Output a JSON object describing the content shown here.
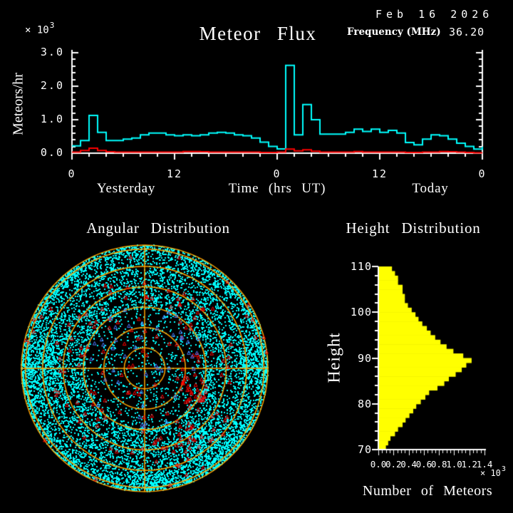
{
  "header": {
    "title": "Meteor Flux",
    "date": "Feb 16 2026",
    "frequency_label": "Frequency (MHz)",
    "frequency_value": "36.20"
  },
  "colors": {
    "background": "#000000",
    "foreground": "#FFFFFF",
    "flux_line": "#00FFFF",
    "secondary_line": "#FF0000",
    "polar_grid": "#FFA500",
    "histogram_bar": "#FFFF00",
    "red_marker": "#FF0000",
    "blue_marker": "#4D79FF"
  },
  "chart_data": [
    {
      "id": "flux",
      "type": "line",
      "subtype": "step",
      "title": "Meteor Flux",
      "ylabel": "Meteors/hr",
      "y_scale_label": "× 10",
      "y_scale_exponent": "3",
      "ylim": [
        0.0,
        3.0
      ],
      "ytick_labels": [
        "0.0",
        "1.0",
        "2.0",
        "3.0"
      ],
      "xlabel": "Time (hrs UT)",
      "x_hours_span": 48,
      "xtick_hours": [
        0,
        12,
        24,
        36,
        48
      ],
      "xtick_labels": [
        "0",
        "12",
        "0",
        "12",
        "0"
      ],
      "x_annotations": [
        "Yesterday",
        "Time (hrs UT)",
        "Today"
      ],
      "grid": false,
      "series": [
        {
          "name": "meteor-rate",
          "color": "#00FFFF",
          "values": [
            0.22,
            0.38,
            1.13,
            0.62,
            0.38,
            0.38,
            0.42,
            0.45,
            0.55,
            0.6,
            0.6,
            0.55,
            0.52,
            0.55,
            0.52,
            0.55,
            0.6,
            0.62,
            0.6,
            0.55,
            0.52,
            0.45,
            0.33,
            0.2,
            0.13,
            2.62,
            0.55,
            1.45,
            1.0,
            0.57,
            0.57,
            0.57,
            0.62,
            0.72,
            0.65,
            0.72,
            0.62,
            0.68,
            0.6,
            0.32,
            0.25,
            0.42,
            0.55,
            0.52,
            0.42,
            0.3,
            0.2,
            0.12
          ],
          "end_value": 0.19
        },
        {
          "name": "secondary-rate",
          "color": "#FF0000",
          "values": [
            0.03,
            0.08,
            0.15,
            0.08,
            0.04,
            0.03,
            0.03,
            0.03,
            0.03,
            0.03,
            0.03,
            0.03,
            0.03,
            0.05,
            0.05,
            0.04,
            0.03,
            0.03,
            0.03,
            0.03,
            0.03,
            0.03,
            0.02,
            0.02,
            0.03,
            0.12,
            0.07,
            0.1,
            0.06,
            0.03,
            0.03,
            0.03,
            0.03,
            0.05,
            0.03,
            0.03,
            0.03,
            0.03,
            0.03,
            0.02,
            0.02,
            0.03,
            0.03,
            0.05,
            0.04,
            0.03,
            0.02,
            0.01
          ],
          "end_value": null
        }
      ]
    },
    {
      "id": "angular",
      "type": "scatter",
      "subtype": "polar-sky-map",
      "title": "Angular Distribution",
      "grid_color": "#FFA500",
      "ring_radii_fraction": [
        0.166,
        0.331,
        0.497,
        0.662,
        0.828,
        0.968,
        1.0
      ],
      "crosshair": true,
      "dot_color": "#00FFFF",
      "scatter_spec": {
        "seed": 20260216,
        "cyan_groups": [
          {
            "name": "annulus",
            "count": 7200,
            "r_min": 0.48,
            "r_max": 1.0
          },
          {
            "name": "inner-sparse",
            "count": 800,
            "r_min": 0.02,
            "r_max": 0.52
          },
          {
            "name": "rim-band",
            "count": 900,
            "r_min": 0.92,
            "r_max": 1.0
          },
          {
            "name": "patch-left",
            "count": 500,
            "angle_deg": 180,
            "angle_spread": 13,
            "r_min": 0.68,
            "r_max": 1.0
          },
          {
            "name": "patch-lower-right",
            "count": 550,
            "angle_deg": -52,
            "angle_spread": 16,
            "r_min": 0.62,
            "r_max": 1.0
          },
          {
            "name": "patch-right",
            "count": 280,
            "angle_deg": 3,
            "angle_spread": 8,
            "r_min": 0.78,
            "r_max": 1.0
          },
          {
            "name": "patch-bottom",
            "count": 200,
            "angle_deg": -87,
            "angle_spread": 9,
            "r_min": 0.86,
            "r_max": 1.0
          },
          {
            "name": "patch-upper-left",
            "count": 150,
            "angle_deg": 135,
            "angle_spread": 15,
            "r_min": 0.93,
            "r_max": 1.0
          }
        ],
        "red_triangle_groups": [
          {
            "name": "red-scatter",
            "count": 120,
            "r_min": 0.05,
            "r_max": 0.75
          },
          {
            "name": "red-cluster",
            "count": 30,
            "angle_deg": -25,
            "angle_spread": 12,
            "r_min": 0.3,
            "r_max": 0.55
          },
          {
            "name": "red-arc",
            "count": 30,
            "angle_deg": -55,
            "angle_spread": 18,
            "r_min": 0.55,
            "r_max": 0.85
          },
          {
            "name": "red-rim",
            "count": 20,
            "r_min": 0.9,
            "r_max": 1.0
          }
        ],
        "blue_triangle_groups": [
          {
            "name": "blue-center",
            "count": 45,
            "r_min": 0.03,
            "r_max": 0.5
          }
        ],
        "red_color": "#FF0000",
        "blue_color": "#4D79FF"
      }
    },
    {
      "id": "height",
      "type": "bar",
      "subtype": "horizontal-histogram",
      "title": "Height Distribution",
      "ylabel": "Height",
      "xlabel": "Number of Meteors",
      "x_scale_label": "× 10",
      "x_scale_exponent": "3",
      "bar_color": "#FFFF00",
      "ylim": [
        70,
        110
      ],
      "xlim": [
        0.0,
        1.4
      ],
      "ytick_labels": [
        "110",
        "100",
        "90",
        "80",
        "70"
      ],
      "xtick_labels": [
        "0.0",
        "0.2",
        "0.4",
        "0.6",
        "0.8",
        "1.0",
        "1.2",
        "1.4"
      ],
      "bin_start_km": 70,
      "bin_size_km": 1,
      "values": [
        0.1,
        0.13,
        0.16,
        0.22,
        0.26,
        0.32,
        0.36,
        0.41,
        0.46,
        0.5,
        0.56,
        0.62,
        0.67,
        0.78,
        0.87,
        0.93,
        1.02,
        1.1,
        1.16,
        1.23,
        1.12,
        0.99,
        0.9,
        0.82,
        0.75,
        0.69,
        0.64,
        0.58,
        0.53,
        0.49,
        0.44,
        0.39,
        0.35,
        0.35,
        0.32,
        0.32,
        0.26,
        0.26,
        0.22,
        0.18
      ]
    }
  ]
}
